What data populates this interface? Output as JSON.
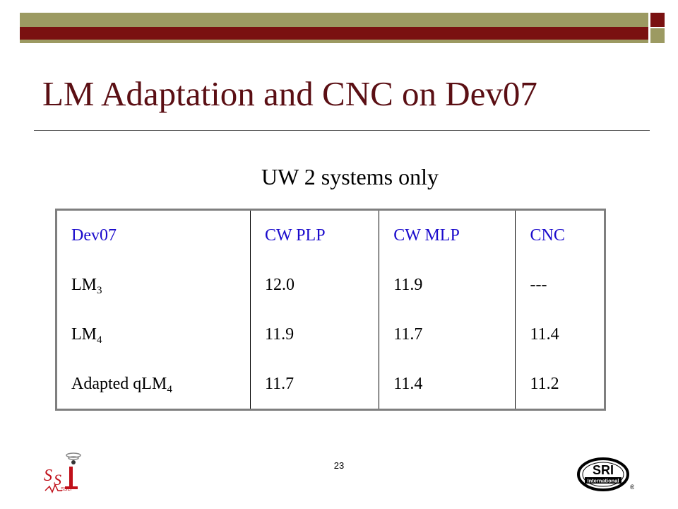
{
  "slide": {
    "title": "LM Adaptation and CNC on Dev07",
    "subtitle": "UW 2 systems only",
    "page_number": "23",
    "colors": {
      "title": "#5b0f14",
      "header_text": "#1a0acc",
      "bar_maroon": "#7a1111",
      "bar_olive": "#9c9a62"
    }
  },
  "table": {
    "headers": [
      "Dev07",
      "CW PLP",
      "CW MLP",
      "CNC"
    ],
    "rows": [
      {
        "label": "LM",
        "sub": "3",
        "values": [
          "12.0",
          "11.9",
          "---"
        ]
      },
      {
        "label": "LM",
        "sub": "4",
        "values": [
          "11.9",
          "11.7",
          "11.4"
        ]
      },
      {
        "label": "Adapted qLM",
        "sub": "4",
        "values": [
          "11.7",
          "11.4",
          "11.2"
        ]
      }
    ]
  },
  "logos": {
    "left": {
      "icon": "ssli-lab-logo",
      "text": "SSLI"
    },
    "right": {
      "icon": "sri-international-logo",
      "text": "SRI",
      "subtext": "International",
      "mark": "®"
    }
  }
}
